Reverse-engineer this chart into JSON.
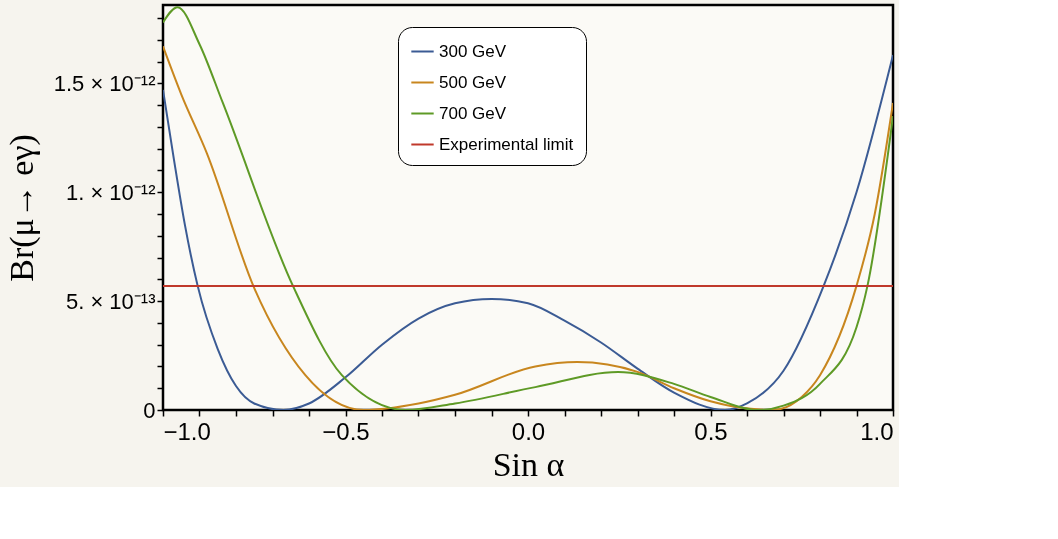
{
  "chart_data": {
    "type": "line",
    "xlabel": "Sin α",
    "ylabel": "Br(μ→ eγ)",
    "xlim": [
      -1.0,
      1.0
    ],
    "ylim": [
      0,
      1.86e-12
    ],
    "xticks": [
      {
        "value": -1.0,
        "label": "−1.0"
      },
      {
        "value": -0.9,
        "label": null
      },
      {
        "value": -0.8,
        "label": null
      },
      {
        "value": -0.7,
        "label": null
      },
      {
        "value": -0.6,
        "label": null
      },
      {
        "value": -0.5,
        "label": "−0.5"
      },
      {
        "value": -0.4,
        "label": null
      },
      {
        "value": -0.3,
        "label": null
      },
      {
        "value": -0.2,
        "label": null
      },
      {
        "value": -0.1,
        "label": null
      },
      {
        "value": 0,
        "label": "0.0"
      },
      {
        "value": 0.1,
        "label": null
      },
      {
        "value": 0.2,
        "label": null
      },
      {
        "value": 0.3,
        "label": null
      },
      {
        "value": 0.4,
        "label": null
      },
      {
        "value": 0.5,
        "label": "0.5"
      },
      {
        "value": 0.6,
        "label": null
      },
      {
        "value": 0.7,
        "label": null
      },
      {
        "value": 0.8,
        "label": null
      },
      {
        "value": 0.9,
        "label": null
      },
      {
        "value": 1.0,
        "label": "1.0"
      }
    ],
    "yticks": [
      0,
      {
        "value": 1e-13,
        "label": null
      },
      {
        "value": 2e-13,
        "label": null
      },
      {
        "value": 3e-13,
        "label": null
      },
      {
        "value": 4e-13,
        "label": null
      },
      {
        "value": 5e-13,
        "label": "5. × 10⁻¹³"
      },
      {
        "value": 6e-13,
        "label": null
      },
      {
        "value": 7e-13,
        "label": null
      },
      {
        "value": 8e-13,
        "label": null
      },
      {
        "value": 9e-13,
        "label": null
      },
      {
        "value": 1e-12,
        "label": "1. × 10⁻¹²"
      },
      {
        "value": 1.1e-12,
        "label": null
      },
      {
        "value": 1.2e-12,
        "label": null
      },
      {
        "value": 1.3e-12,
        "label": null
      },
      {
        "value": 1.4e-12,
        "label": null
      },
      {
        "value": 1.5e-12,
        "label": "1.5 × 10⁻¹²"
      },
      {
        "value": 1.6e-12,
        "label": null
      },
      {
        "value": 1.7e-12,
        "label": null
      },
      {
        "value": 1.8e-12,
        "label": null
      }
    ],
    "grid": false,
    "legend": "top",
    "marker": "none",
    "line_style": "solid",
    "series": [
      {
        "name": "300 GeV",
        "color": "#3b5b94",
        "x": [
          -1.0,
          -0.97,
          -0.94,
          -0.905,
          -0.85,
          -0.8,
          -0.75,
          -0.67,
          -0.6,
          -0.5,
          -0.4,
          -0.3,
          -0.2,
          -0.1,
          0.0,
          0.1,
          0.2,
          0.3,
          0.4,
          0.54,
          0.6,
          0.7,
          0.81,
          0.9,
          1.0
        ],
        "values": [
          1.47e-12,
          1.15e-12,
          8.5e-13,
          5.7e-13,
          2.8e-13,
          1.1e-13,
          3e-14,
          0,
          3e-14,
          1.5e-13,
          3e-13,
          4.2e-13,
          4.9e-13,
          5.1e-13,
          4.9e-13,
          4.1e-13,
          3.1e-13,
          1.9e-13,
          8e-14,
          0,
          3e-14,
          1.8e-13,
          5.7e-13,
          1e-12,
          1.63e-12
        ]
      },
      {
        "name": "500 GeV",
        "color": "#c8861e",
        "x": [
          -1.0,
          -0.95,
          -0.88,
          -0.75,
          -0.61,
          -0.45,
          -0.3,
          -0.2,
          0.02,
          0.135,
          0.3,
          0.4,
          0.5,
          0.67,
          0.75,
          0.8,
          0.9,
          0.95,
          1.0
        ],
        "values": [
          1.67e-12,
          1.45e-12,
          1.18e-12,
          5.6e-13,
          1.6e-13,
          0,
          3e-14,
          7e-14,
          2e-13,
          2.2e-13,
          1.75e-13,
          1e-13,
          4e-14,
          0,
          6e-14,
          1.6e-13,
          5.7e-13,
          9e-13,
          1.41e-12
        ]
      },
      {
        "name": "700 GeV",
        "color": "#5e9a26",
        "x": [
          -1.0,
          -0.96,
          -0.9,
          -0.836,
          -0.644,
          -0.51,
          -0.335,
          -0.2,
          0.02,
          0.247,
          0.4,
          0.5,
          0.63,
          0.7,
          0.8,
          0.9,
          0.93,
          1.0
        ],
        "values": [
          1.78e-12,
          1.85e-12,
          1.68e-12,
          1.41e-12,
          5.7e-13,
          1.6e-13,
          0,
          3e-14,
          1.05e-13,
          1.74e-13,
          1.2e-13,
          6e-14,
          0,
          2e-14,
          1.2e-13,
          3.8e-13,
          5.7e-13,
          1.35e-12
        ]
      }
    ],
    "ref_lines": [
      {
        "axis": "y",
        "value": 5.7e-13,
        "label": "Experimental limit",
        "color": "#c0392b",
        "line_style": "solid"
      }
    ]
  }
}
